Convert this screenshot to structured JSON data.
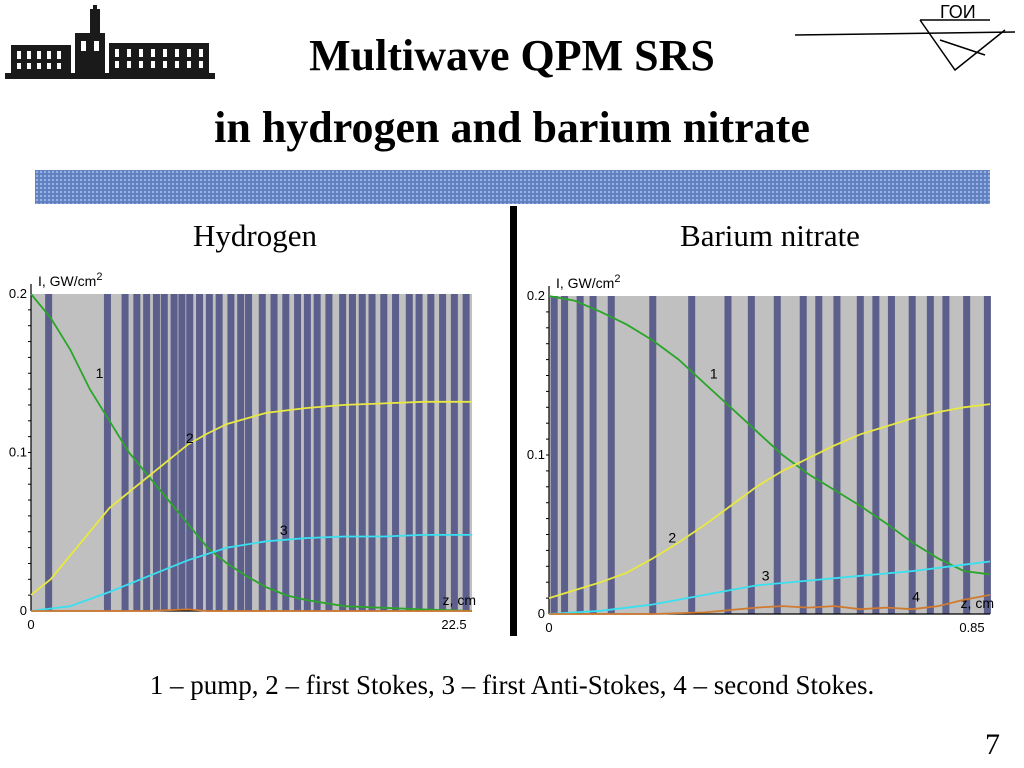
{
  "title": {
    "line1": "Multiwave QPM SRS",
    "line2": "in hydrogen and barium nitrate"
  },
  "logo_right_text": "ГОИ",
  "panels": {
    "left_label": "Hydrogen",
    "right_label": "Barium nitrate"
  },
  "caption": "1 – pump, 2 – first Stokes, 3 – first Anti-Stokes, 4 – second Stokes.",
  "page_number": "7",
  "colors": {
    "banner": "#5f7fbf",
    "plot_bg": "#c0c0c0",
    "stripe": "#5c5f8c",
    "pump": "#2aa52a",
    "stokes1": "#e8e840",
    "antistokes1": "#38e0f0",
    "stokes2": "#d07a30"
  },
  "chart_data": [
    {
      "type": "line",
      "panel": "Hydrogen",
      "ylabel": "I, GW/cm",
      "ylabel_sup": "2",
      "xlabel": "z, cm",
      "xlim": [
        0,
        22.5
      ],
      "ylim": [
        0,
        0.2
      ],
      "yticks": [
        "0.2",
        "0.1",
        "0"
      ],
      "xticks": [
        "0",
        "22.5"
      ],
      "grid": false,
      "series": [
        {
          "name": "1",
          "color": "pump",
          "x": [
            0,
            1,
            2,
            3,
            4,
            5,
            6,
            7,
            8,
            9,
            10,
            11,
            12,
            13,
            14,
            16,
            18,
            20,
            22.5
          ],
          "values": [
            0.2,
            0.185,
            0.165,
            0.14,
            0.12,
            0.1,
            0.085,
            0.07,
            0.055,
            0.04,
            0.03,
            0.022,
            0.015,
            0.01,
            0.007,
            0.003,
            0.002,
            0.001,
            0.0
          ]
        },
        {
          "name": "2",
          "color": "stokes1",
          "x": [
            0,
            1,
            2,
            3,
            4,
            5,
            6,
            7,
            8,
            9,
            10,
            12,
            14,
            16,
            18,
            20,
            22.5
          ],
          "values": [
            0.01,
            0.02,
            0.035,
            0.05,
            0.065,
            0.075,
            0.085,
            0.095,
            0.105,
            0.112,
            0.118,
            0.125,
            0.128,
            0.13,
            0.131,
            0.132,
            0.132
          ]
        },
        {
          "name": "3",
          "color": "antistokes1",
          "x": [
            0,
            2,
            4,
            6,
            8,
            10,
            12,
            14,
            16,
            18,
            20,
            22.5
          ],
          "values": [
            0.0,
            0.003,
            0.012,
            0.022,
            0.032,
            0.04,
            0.044,
            0.046,
            0.047,
            0.047,
            0.048,
            0.048
          ]
        },
        {
          "name": "4",
          "color": "stokes2",
          "x": [
            0,
            6,
            8,
            9,
            12,
            22.5
          ],
          "values": [
            0.0,
            0.0,
            0.001,
            0.0,
            0.0,
            0.0
          ]
        }
      ],
      "annotations": [
        {
          "text": "1",
          "x": 3.3,
          "y": 0.147
        },
        {
          "text": "2",
          "x": 7.9,
          "y": 0.106
        },
        {
          "text": "3",
          "x": 12.7,
          "y": 0.048
        }
      ],
      "stripes_x": [
        0.9,
        3.9,
        4.8,
        5.4,
        5.9,
        6.4,
        6.8,
        7.3,
        7.7,
        8.1,
        8.6,
        9.1,
        9.6,
        10.2,
        10.7,
        11.1,
        11.8,
        12.4,
        13.0,
        13.6,
        14.1,
        14.6,
        15.2,
        15.9,
        16.4,
        16.9,
        17.4,
        18.0,
        18.6,
        19.3,
        19.8,
        20.4,
        21.0,
        21.6,
        22.2
      ]
    },
    {
      "type": "line",
      "panel": "Barium nitrate",
      "ylabel": "I, GW/cm",
      "ylabel_sup": "2",
      "xlabel": "z, cm",
      "xlim": [
        0,
        0.85
      ],
      "ylim": [
        0,
        0.2
      ],
      "yticks": [
        "0.2",
        "0.1",
        "0"
      ],
      "xticks": [
        "0",
        "0.85"
      ],
      "grid": false,
      "series": [
        {
          "name": "1",
          "color": "pump",
          "x": [
            0,
            0.05,
            0.1,
            0.15,
            0.2,
            0.25,
            0.3,
            0.35,
            0.4,
            0.45,
            0.5,
            0.55,
            0.6,
            0.65,
            0.7,
            0.75,
            0.8,
            0.85
          ],
          "values": [
            0.2,
            0.197,
            0.19,
            0.182,
            0.172,
            0.16,
            0.145,
            0.13,
            0.115,
            0.1,
            0.088,
            0.078,
            0.068,
            0.057,
            0.045,
            0.035,
            0.027,
            0.025
          ]
        },
        {
          "name": "2",
          "color": "stokes1",
          "x": [
            0,
            0.05,
            0.1,
            0.15,
            0.2,
            0.25,
            0.3,
            0.35,
            0.4,
            0.45,
            0.5,
            0.55,
            0.6,
            0.65,
            0.7,
            0.75,
            0.8,
            0.85
          ],
          "values": [
            0.01,
            0.015,
            0.02,
            0.026,
            0.035,
            0.045,
            0.056,
            0.068,
            0.08,
            0.09,
            0.098,
            0.106,
            0.113,
            0.118,
            0.123,
            0.127,
            0.13,
            0.132
          ]
        },
        {
          "name": "3",
          "color": "antistokes1",
          "x": [
            0,
            0.1,
            0.2,
            0.3,
            0.4,
            0.5,
            0.6,
            0.7,
            0.8,
            0.85
          ],
          "values": [
            0.0,
            0.002,
            0.006,
            0.012,
            0.018,
            0.021,
            0.024,
            0.027,
            0.031,
            0.033
          ]
        },
        {
          "name": "4",
          "color": "stokes2",
          "x": [
            0,
            0.2,
            0.3,
            0.4,
            0.45,
            0.5,
            0.55,
            0.6,
            0.65,
            0.7,
            0.75,
            0.8,
            0.85
          ],
          "values": [
            0.0,
            0.0,
            0.001,
            0.004,
            0.005,
            0.004,
            0.005,
            0.003,
            0.004,
            0.003,
            0.005,
            0.009,
            0.012
          ]
        }
      ],
      "annotations": [
        {
          "text": "1",
          "x": 0.31,
          "y": 0.148
        },
        {
          "text": "2",
          "x": 0.23,
          "y": 0.045
        },
        {
          "text": "3",
          "x": 0.41,
          "y": 0.021
        },
        {
          "text": "4",
          "x": 0.7,
          "y": 0.008
        }
      ],
      "stripes_x": [
        0.01,
        0.03,
        0.06,
        0.085,
        0.12,
        0.2,
        0.275,
        0.345,
        0.39,
        0.44,
        0.49,
        0.52,
        0.555,
        0.6,
        0.63,
        0.66,
        0.7,
        0.735,
        0.765,
        0.805,
        0.845
      ]
    }
  ]
}
